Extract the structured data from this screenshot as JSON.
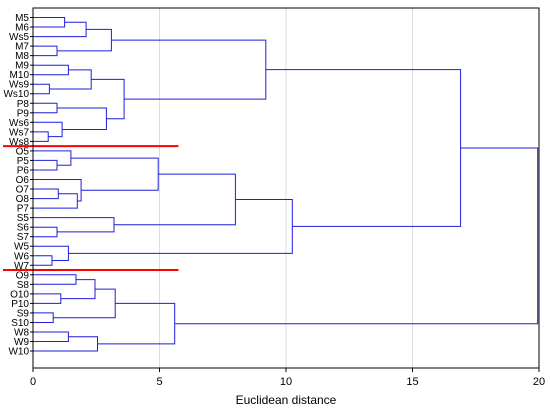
{
  "chart_data": {
    "type": "dendrogram",
    "orientation": "horizontal",
    "xlabel": "Euclidean distance",
    "xlim": [
      0,
      20
    ],
    "xticks": [
      "0",
      "5",
      "10",
      "15",
      "20"
    ],
    "grid": "vertical",
    "leaves": [
      "M5",
      "M6",
      "Ws5",
      "M7",
      "M8",
      "M9",
      "M10",
      "Ws9",
      "Ws10",
      "P8",
      "P9",
      "Ws6",
      "Ws7",
      "Ws8",
      "O5",
      "P5",
      "P6",
      "O6",
      "O7",
      "O8",
      "P7",
      "S5",
      "S6",
      "S7",
      "W5",
      "W6",
      "W7",
      "O9",
      "S8",
      "O10",
      "P10",
      "S9",
      "S10",
      "W8",
      "W9",
      "W10"
    ],
    "merges": [
      {
        "a": "M5",
        "b": "M6",
        "height": 1.25
      },
      {
        "a": "c1",
        "b": "Ws5",
        "height": 2.1
      },
      {
        "a": "M7",
        "b": "M8",
        "height": 0.95
      },
      {
        "a": "c2",
        "b": "c3",
        "height": 3.1
      },
      {
        "a": "M9",
        "b": "M10",
        "height": 1.4
      },
      {
        "a": "Ws9",
        "b": "Ws10",
        "height": 0.65
      },
      {
        "a": "c5",
        "b": "c6",
        "height": 2.3
      },
      {
        "a": "P8",
        "b": "P9",
        "height": 0.95
      },
      {
        "a": "Ws7",
        "b": "Ws8",
        "height": 0.6
      },
      {
        "a": "Ws6",
        "b": "c9",
        "height": 1.15
      },
      {
        "a": "c8",
        "b": "c10",
        "height": 2.9
      },
      {
        "a": "c7",
        "b": "c11",
        "height": 3.6
      },
      {
        "a": "c4",
        "b": "c12",
        "height": 9.2
      },
      {
        "a": "P5",
        "b": "P6",
        "height": 0.95
      },
      {
        "a": "O5",
        "b": "c14",
        "height": 1.5
      },
      {
        "a": "O7",
        "b": "O8",
        "height": 1.0
      },
      {
        "a": "c16",
        "b": "P7",
        "height": 1.75
      },
      {
        "a": "O6",
        "b": "c17",
        "height": 1.9
      },
      {
        "a": "c15",
        "b": "c18",
        "height": 4.95
      },
      {
        "a": "S6",
        "b": "S7",
        "height": 0.95
      },
      {
        "a": "S5",
        "b": "c20",
        "height": 3.2
      },
      {
        "a": "c19",
        "b": "c21",
        "height": 8.0
      },
      {
        "a": "W6",
        "b": "W7",
        "height": 0.75
      },
      {
        "a": "W5",
        "b": "c23",
        "height": 1.4
      },
      {
        "a": "c22",
        "b": "c24",
        "height": 10.25
      },
      {
        "a": "c13",
        "b": "c25",
        "height": 16.9
      },
      {
        "a": "O9",
        "b": "S8",
        "height": 1.7
      },
      {
        "a": "O10",
        "b": "P10",
        "height": 1.1
      },
      {
        "a": "c27",
        "b": "c28",
        "height": 2.45
      },
      {
        "a": "S9",
        "b": "S10",
        "height": 0.8
      },
      {
        "a": "c29",
        "b": "c30",
        "height": 3.25
      },
      {
        "a": "W8",
        "b": "W9",
        "height": 1.4
      },
      {
        "a": "c32",
        "b": "W10",
        "height": 2.55
      },
      {
        "a": "c31",
        "b": "c33",
        "height": 5.6
      },
      {
        "a": "c26",
        "b": "c34",
        "height": 19.95
      }
    ],
    "cut_lines": [
      {
        "between": [
          "Ws8",
          "O5"
        ],
        "x_end": 5.75,
        "color": "#ff0000"
      },
      {
        "between": [
          "W7",
          "O9"
        ],
        "x_end": 5.75,
        "color": "#ff0000"
      }
    ],
    "colors": {
      "branches": "#1f1fdd",
      "grid": "#dddddd",
      "axis": "#000000",
      "cut_line": "#ff0000"
    }
  }
}
